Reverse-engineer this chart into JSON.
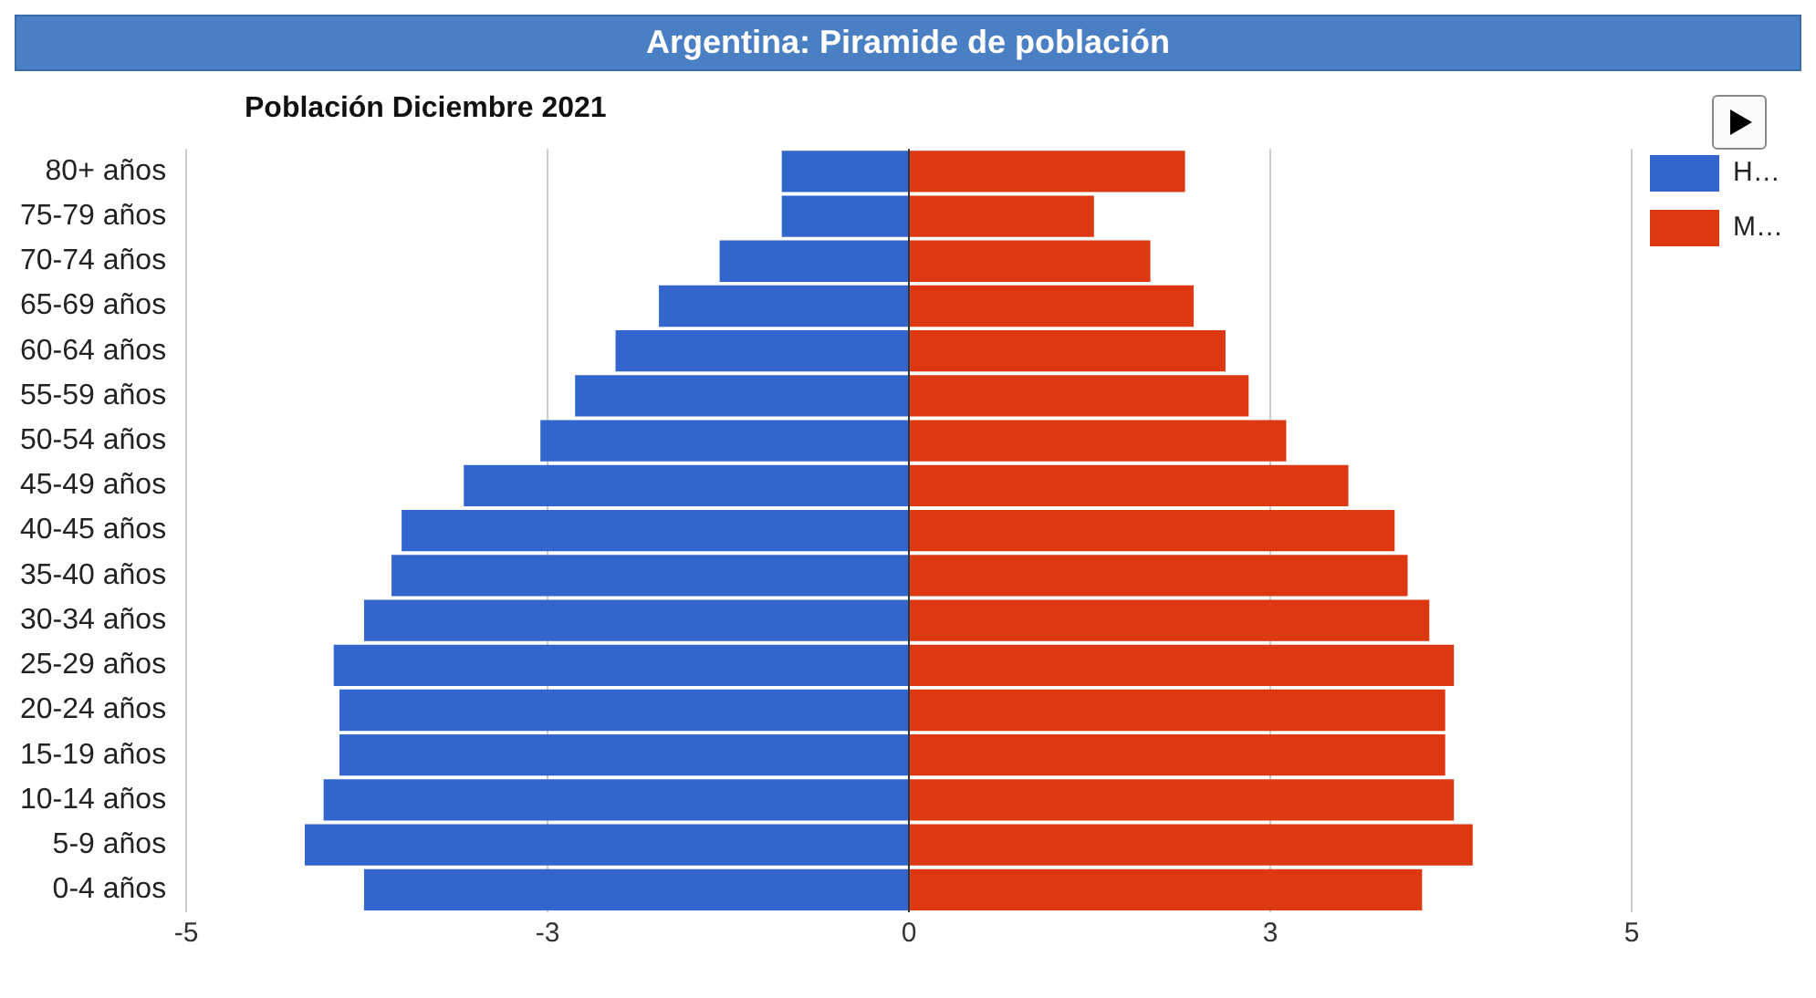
{
  "chart_data": {
    "type": "bar",
    "orientation": "horizontal",
    "stacked": true,
    "title": "Argentina: Piramide de población",
    "subtitle": "Población Diciembre 2021",
    "categories": [
      "80+ años",
      "75-79 años",
      "70-74 años",
      "65-69 años",
      "60-64 años",
      "55-59 años",
      "50-54 años",
      "45-49 años",
      "40-45 años",
      "35-40 años",
      "30-34 años",
      "25-29 años",
      "20-24 años",
      "15-19 años",
      "10-14 años",
      "5-9 años",
      "0-4 años"
    ],
    "series": [
      {
        "name": "H…",
        "color": "#3366cc",
        "values": [
          -0.88,
          -0.88,
          -1.31,
          -1.73,
          -2.03,
          -2.31,
          -2.55,
          -3.08,
          -3.51,
          -3.58,
          -3.77,
          -3.98,
          -3.94,
          -3.94,
          -4.05,
          -4.18,
          -3.77
        ]
      },
      {
        "name": "M…",
        "color": "#dc3912",
        "values": [
          1.91,
          1.28,
          1.67,
          1.97,
          2.19,
          2.35,
          2.61,
          3.04,
          3.36,
          3.45,
          3.6,
          3.77,
          3.71,
          3.71,
          3.77,
          3.9,
          3.55
        ]
      }
    ],
    "xlim": [
      -5,
      5
    ],
    "xticks": [
      -5,
      {
        "value": -2.5,
        "label": "-3"
      },
      0,
      {
        "value": 2.5,
        "label": "3"
      },
      5
    ],
    "grid": "x",
    "legend": "top right"
  }
}
